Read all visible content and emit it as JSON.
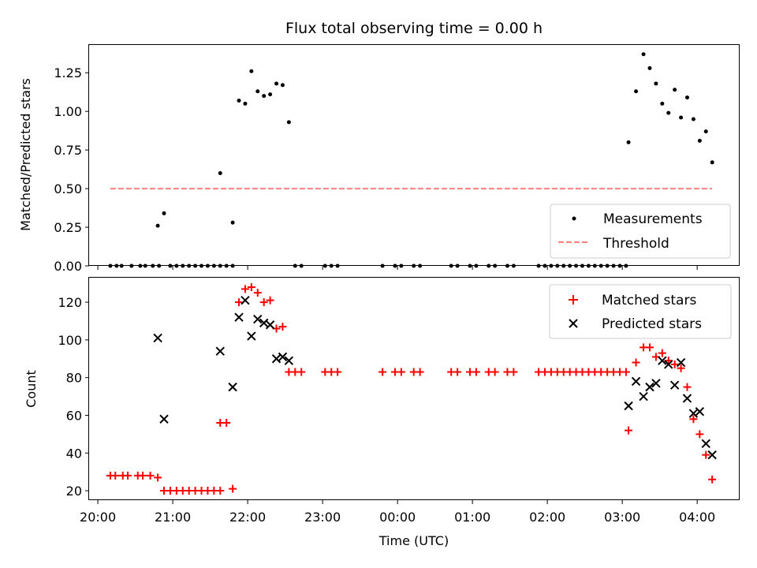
{
  "chart_data": [
    {
      "type": "scatter",
      "title": "Flux total observing time = 0.00 h",
      "ylabel": "Matched/Predicted stars",
      "xlabel": "",
      "ylim": [
        0,
        1.43
      ],
      "yticks": [
        0.0,
        0.25,
        0.5,
        0.75,
        1.0,
        1.25
      ],
      "ytick_labels": [
        "0.00",
        "0.25",
        "0.50",
        "0.75",
        "1.00",
        "1.25"
      ],
      "legend": {
        "position": "lower-right",
        "entries": [
          "Measurements",
          "Threshold"
        ]
      },
      "series": [
        {
          "name": "Measurements",
          "marker": "dot",
          "color": "#000000",
          "points": [
            [
              "20:10",
              0
            ],
            [
              "20:15",
              0
            ],
            [
              "20:19",
              0
            ],
            [
              "20:27",
              0
            ],
            [
              "20:34",
              0
            ],
            [
              "20:38",
              0
            ],
            [
              "20:44",
              0
            ],
            [
              "20:49",
              0
            ],
            [
              "20:48",
              0.26
            ],
            [
              "20:53",
              0.34
            ],
            [
              "20:58",
              0
            ],
            [
              "21:03",
              0
            ],
            [
              "21:08",
              0
            ],
            [
              "21:13",
              0
            ],
            [
              "21:18",
              0
            ],
            [
              "21:23",
              0
            ],
            [
              "21:28",
              0
            ],
            [
              "21:33",
              0
            ],
            [
              "21:38",
              0
            ],
            [
              "21:43",
              0
            ],
            [
              "21:48",
              0
            ],
            [
              "21:38",
              0.6
            ],
            [
              "21:48",
              0.28
            ],
            [
              "21:53",
              1.07
            ],
            [
              "21:58",
              1.05
            ],
            [
              "22:03",
              1.26
            ],
            [
              "22:08",
              1.13
            ],
            [
              "22:13",
              1.1
            ],
            [
              "22:18",
              1.11
            ],
            [
              "22:23",
              1.18
            ],
            [
              "22:28",
              1.17
            ],
            [
              "22:33",
              0.93
            ],
            [
              "22:38",
              0
            ],
            [
              "22:43",
              0
            ],
            [
              "23:02",
              0
            ],
            [
              "23:07",
              0
            ],
            [
              "23:12",
              0
            ],
            [
              "23:48",
              0
            ],
            [
              "23:58",
              0
            ],
            [
              "00:03",
              0
            ],
            [
              "00:13",
              0
            ],
            [
              "00:18",
              0
            ],
            [
              "00:43",
              0
            ],
            [
              "00:48",
              0
            ],
            [
              "00:58",
              0
            ],
            [
              "01:03",
              0
            ],
            [
              "01:13",
              0
            ],
            [
              "01:18",
              0
            ],
            [
              "01:28",
              0
            ],
            [
              "01:33",
              0
            ],
            [
              "01:53",
              0
            ],
            [
              "01:58",
              0
            ],
            [
              "02:03",
              0
            ],
            [
              "02:08",
              0
            ],
            [
              "02:13",
              0
            ],
            [
              "02:18",
              0
            ],
            [
              "02:23",
              0
            ],
            [
              "02:28",
              0
            ],
            [
              "02:33",
              0
            ],
            [
              "02:38",
              0
            ],
            [
              "02:43",
              0
            ],
            [
              "02:48",
              0
            ],
            [
              "02:53",
              0
            ],
            [
              "02:58",
              0
            ],
            [
              "03:03",
              0
            ],
            [
              "03:05",
              0.8
            ],
            [
              "03:11",
              1.13
            ],
            [
              "03:17",
              1.37
            ],
            [
              "03:22",
              1.28
            ],
            [
              "03:27",
              1.18
            ],
            [
              "03:32",
              1.05
            ],
            [
              "03:37",
              0.99
            ],
            [
              "03:42",
              1.14
            ],
            [
              "03:47",
              0.96
            ],
            [
              "03:52",
              1.09
            ],
            [
              "03:57",
              0.95
            ],
            [
              "04:02",
              0.81
            ],
            [
              "04:07",
              0.87
            ],
            [
              "04:12",
              0.67
            ]
          ]
        },
        {
          "name": "Threshold",
          "style": "dashed",
          "color": "#ff7f7f",
          "points": [
            [
              "20:10",
              0.5
            ],
            [
              "04:12",
              0.5
            ]
          ]
        }
      ]
    },
    {
      "type": "scatter",
      "title": "",
      "ylabel": "Count",
      "xlabel": "Time (UTC)",
      "ylim": [
        15,
        133
      ],
      "yticks": [
        20,
        40,
        60,
        80,
        100,
        120
      ],
      "ytick_labels": [
        "20",
        "40",
        "60",
        "80",
        "100",
        "120"
      ],
      "xticks": [
        "20:00",
        "21:00",
        "22:00",
        "23:00",
        "00:00",
        "01:00",
        "02:00",
        "03:00",
        "04:00"
      ],
      "xlim": [
        "19:53",
        "04:34"
      ],
      "legend": {
        "position": "upper-right",
        "entries": [
          "Matched stars",
          "Predicted stars"
        ]
      },
      "series": [
        {
          "name": "Matched stars",
          "marker": "plus",
          "color": "#ff0000",
          "points": [
            [
              "20:10",
              28
            ],
            [
              "20:14",
              28
            ],
            [
              "20:20",
              28
            ],
            [
              "20:24",
              28
            ],
            [
              "20:32",
              28
            ],
            [
              "20:36",
              28
            ],
            [
              "20:42",
              28
            ],
            [
              "20:48",
              27
            ],
            [
              "20:53",
              20
            ],
            [
              "20:58",
              20
            ],
            [
              "21:03",
              20
            ],
            [
              "21:08",
              20
            ],
            [
              "21:13",
              20
            ],
            [
              "21:18",
              20
            ],
            [
              "21:23",
              20
            ],
            [
              "21:28",
              20
            ],
            [
              "21:33",
              20
            ],
            [
              "21:38",
              20
            ],
            [
              "21:48",
              21
            ],
            [
              "21:38",
              56
            ],
            [
              "21:43",
              56
            ],
            [
              "21:53",
              120
            ],
            [
              "21:58",
              127
            ],
            [
              "22:03",
              128
            ],
            [
              "22:08",
              125
            ],
            [
              "22:13",
              120
            ],
            [
              "22:18",
              121
            ],
            [
              "22:23",
              106
            ],
            [
              "22:28",
              107
            ],
            [
              "22:33",
              83
            ],
            [
              "22:38",
              83
            ],
            [
              "22:43",
              83
            ],
            [
              "23:02",
              83
            ],
            [
              "23:07",
              83
            ],
            [
              "23:12",
              83
            ],
            [
              "23:48",
              83
            ],
            [
              "23:58",
              83
            ],
            [
              "00:03",
              83
            ],
            [
              "00:13",
              83
            ],
            [
              "00:18",
              83
            ],
            [
              "00:43",
              83
            ],
            [
              "00:48",
              83
            ],
            [
              "00:58",
              83
            ],
            [
              "01:03",
              83
            ],
            [
              "01:13",
              83
            ],
            [
              "01:18",
              83
            ],
            [
              "01:28",
              83
            ],
            [
              "01:33",
              83
            ],
            [
              "01:53",
              83
            ],
            [
              "01:58",
              83
            ],
            [
              "02:03",
              83
            ],
            [
              "02:08",
              83
            ],
            [
              "02:13",
              83
            ],
            [
              "02:18",
              83
            ],
            [
              "02:23",
              83
            ],
            [
              "02:28",
              83
            ],
            [
              "02:33",
              83
            ],
            [
              "02:38",
              83
            ],
            [
              "02:43",
              83
            ],
            [
              "02:48",
              83
            ],
            [
              "02:53",
              83
            ],
            [
              "02:58",
              83
            ],
            [
              "03:03",
              83
            ],
            [
              "03:05",
              52
            ],
            [
              "03:11",
              88
            ],
            [
              "03:17",
              96
            ],
            [
              "03:22",
              96
            ],
            [
              "03:27",
              91
            ],
            [
              "03:32",
              93
            ],
            [
              "03:37",
              89
            ],
            [
              "03:42",
              87
            ],
            [
              "03:47",
              85
            ],
            [
              "03:52",
              75
            ],
            [
              "03:57",
              58
            ],
            [
              "04:02",
              50
            ],
            [
              "04:07",
              39
            ],
            [
              "04:12",
              26
            ]
          ]
        },
        {
          "name": "Predicted stars",
          "marker": "x",
          "color": "#000000",
          "points": [
            [
              "20:48",
              101
            ],
            [
              "20:53",
              58
            ],
            [
              "21:38",
              94
            ],
            [
              "21:48",
              75
            ],
            [
              "21:53",
              112
            ],
            [
              "21:58",
              121
            ],
            [
              "22:03",
              102
            ],
            [
              "22:08",
              111
            ],
            [
              "22:13",
              109
            ],
            [
              "22:18",
              108
            ],
            [
              "22:23",
              90
            ],
            [
              "22:28",
              91
            ],
            [
              "22:33",
              89
            ],
            [
              "03:05",
              65
            ],
            [
              "03:11",
              78
            ],
            [
              "03:17",
              70
            ],
            [
              "03:22",
              75
            ],
            [
              "03:27",
              77
            ],
            [
              "03:32",
              89
            ],
            [
              "03:37",
              87
            ],
            [
              "03:42",
              76
            ],
            [
              "03:47",
              88
            ],
            [
              "03:52",
              69
            ],
            [
              "03:57",
              61
            ],
            [
              "04:02",
              62
            ],
            [
              "04:07",
              45
            ],
            [
              "04:12",
              39
            ]
          ]
        }
      ]
    }
  ]
}
